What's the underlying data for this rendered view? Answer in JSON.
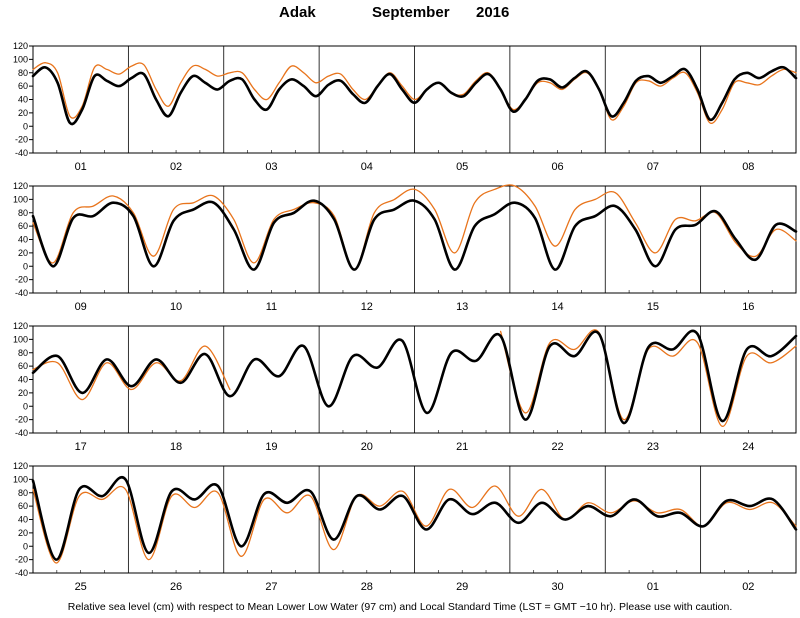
{
  "title": {
    "station": "Adak",
    "month": "September",
    "year": "2016"
  },
  "footer": "Relative sea level (cm) with respect to Mean Lower Low Water (97 cm) and Local Standard Time (LST = GMT −10 hr). Please use with caution.",
  "colors": {
    "predicted": "#000000",
    "observed": "#e8741c",
    "grid": "#000000"
  },
  "chart_data": [
    {
      "type": "line",
      "ylim": [
        -40,
        120
      ],
      "yticks": [
        -40,
        -20,
        0,
        20,
        40,
        60,
        80,
        100,
        120
      ],
      "days": [
        "01",
        "02",
        "03",
        "04",
        "05",
        "06",
        "07",
        "08"
      ],
      "series": [
        {
          "values": [
            75,
            88,
            65,
            5,
            25,
            75,
            68,
            60,
            72,
            78,
            40,
            15,
            50,
            75,
            65,
            55,
            68,
            70,
            40,
            25,
            55,
            70,
            60,
            45,
            62,
            68,
            48,
            35,
            60,
            78,
            55,
            35,
            55,
            65,
            50,
            45,
            65,
            78,
            55,
            22,
            40,
            68,
            70,
            58,
            72,
            82,
            55,
            15,
            35,
            68,
            75,
            65,
            75,
            85,
            55,
            10,
            35,
            70,
            80,
            72,
            82,
            88,
            72
          ]
        },
        {
          "values": [
            85,
            95,
            80,
            15,
            30,
            88,
            85,
            78,
            90,
            92,
            55,
            30,
            65,
            90,
            85,
            75,
            80,
            80,
            55,
            40,
            65,
            90,
            80,
            65,
            75,
            78,
            55,
            40,
            60,
            80,
            60,
            40,
            55,
            65,
            50,
            48,
            68,
            80,
            55,
            25,
            40,
            65,
            65,
            55,
            70,
            80,
            55,
            10,
            30,
            65,
            68,
            60,
            72,
            80,
            50,
            5,
            25,
            65,
            65,
            62,
            75,
            85,
            80
          ]
        }
      ]
    },
    {
      "type": "line",
      "ylim": [
        -40,
        120
      ],
      "yticks": [
        -40,
        -20,
        0,
        20,
        40,
        60,
        80,
        100,
        120
      ],
      "days": [
        "09",
        "10",
        "11",
        "12",
        "13",
        "14",
        "15",
        "16"
      ],
      "series": [
        {
          "values": [
            75,
            0,
            72,
            75,
            95,
            75,
            0,
            68,
            85,
            95,
            55,
            -5,
            65,
            80,
            98,
            70,
            -5,
            70,
            85,
            98,
            70,
            -5,
            60,
            78,
            95,
            72,
            -5,
            60,
            75,
            90,
            55,
            0,
            55,
            62,
            82,
            40,
            10,
            62,
            52
          ]
        },
        {
          "values": [
            65,
            5,
            80,
            90,
            105,
            80,
            15,
            85,
            95,
            105,
            70,
            5,
            70,
            85,
            95,
            75,
            -5,
            80,
            100,
            115,
            85,
            20,
            95,
            115,
            125,
            90,
            30,
            85,
            100,
            110,
            65,
            20,
            70,
            68,
            80,
            35,
            15,
            55,
            38
          ]
        }
      ]
    },
    {
      "type": "line",
      "ylim": [
        -40,
        120
      ],
      "yticks": [
        -40,
        -20,
        0,
        20,
        40,
        60,
        80,
        100,
        120
      ],
      "days": [
        "17",
        "18",
        "19",
        "20",
        "21",
        "22",
        "23",
        "24"
      ],
      "series": [
        {
          "values": [
            50,
            75,
            20,
            70,
            30,
            70,
            35,
            78,
            15,
            70,
            45,
            90,
            0,
            75,
            58,
            98,
            -10,
            80,
            68,
            105,
            -20,
            90,
            75,
            108,
            -25,
            88,
            85,
            108,
            -22,
            85,
            75,
            105
          ]
        },
        {
          "values": [
            55,
            65,
            10,
            65,
            25,
            65,
            38,
            90,
            25,
            null,
            null,
            null,
            null,
            null,
            null,
            null,
            null,
            null,
            null,
            112,
            -10,
            95,
            85,
            110,
            -20,
            85,
            75,
            95,
            -30,
            75,
            65,
            90
          ]
        }
      ]
    },
    {
      "type": "line",
      "ylim": [
        -40,
        120
      ],
      "yticks": [
        -40,
        -20,
        0,
        20,
        40,
        60,
        80,
        100,
        120
      ],
      "days": [
        "25",
        "26",
        "27",
        "28",
        "29",
        "30",
        "01",
        "02"
      ],
      "series": [
        {
          "values": [
            98,
            -20,
            85,
            75,
            100,
            -10,
            82,
            70,
            90,
            0,
            78,
            65,
            82,
            10,
            75,
            55,
            75,
            25,
            70,
            48,
            65,
            35,
            65,
            40,
            60,
            45,
            70,
            45,
            50,
            30,
            68,
            60,
            70,
            25
          ]
        },
        {
          "values": [
            85,
            -25,
            75,
            70,
            85,
            -20,
            75,
            58,
            80,
            -15,
            70,
            50,
            75,
            -5,
            75,
            60,
            82,
            30,
            85,
            58,
            90,
            45,
            85,
            40,
            65,
            50,
            68,
            50,
            55,
            30,
            65,
            55,
            65,
            30
          ]
        }
      ]
    }
  ]
}
